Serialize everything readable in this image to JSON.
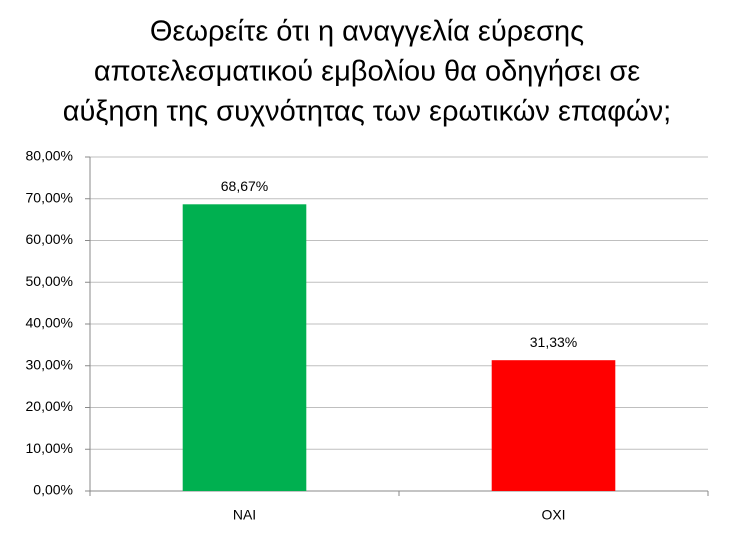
{
  "chart_data": {
    "type": "bar",
    "title": [
      "Θεωρείτε ότι η αναγγελία εύρεσης",
      "αποτελεσματικού εμβολίου θα οδηγήσει σε",
      "αύξηση της συχνότητας των ερωτικών επαφών;"
    ],
    "categories": [
      "ΝΑΙ",
      "ΟΧΙ"
    ],
    "values": [
      68.67,
      31.33
    ],
    "value_labels": [
      "68,67%",
      "31,33%"
    ],
    "colors": [
      "#00b050",
      "#ff0000"
    ],
    "ylim": [
      0,
      80
    ],
    "yticks": [
      {
        "value": 0,
        "label": "0,00%"
      },
      {
        "value": 10,
        "label": "10,00%"
      },
      {
        "value": 20,
        "label": "20,00%"
      },
      {
        "value": 30,
        "label": "30,00%"
      },
      {
        "value": 40,
        "label": "40,00%"
      },
      {
        "value": 50,
        "label": "50,00%"
      },
      {
        "value": 60,
        "label": "60,00%"
      },
      {
        "value": 70,
        "label": "70,00%"
      },
      {
        "value": 80,
        "label": "80,00%"
      }
    ],
    "grid": true
  }
}
